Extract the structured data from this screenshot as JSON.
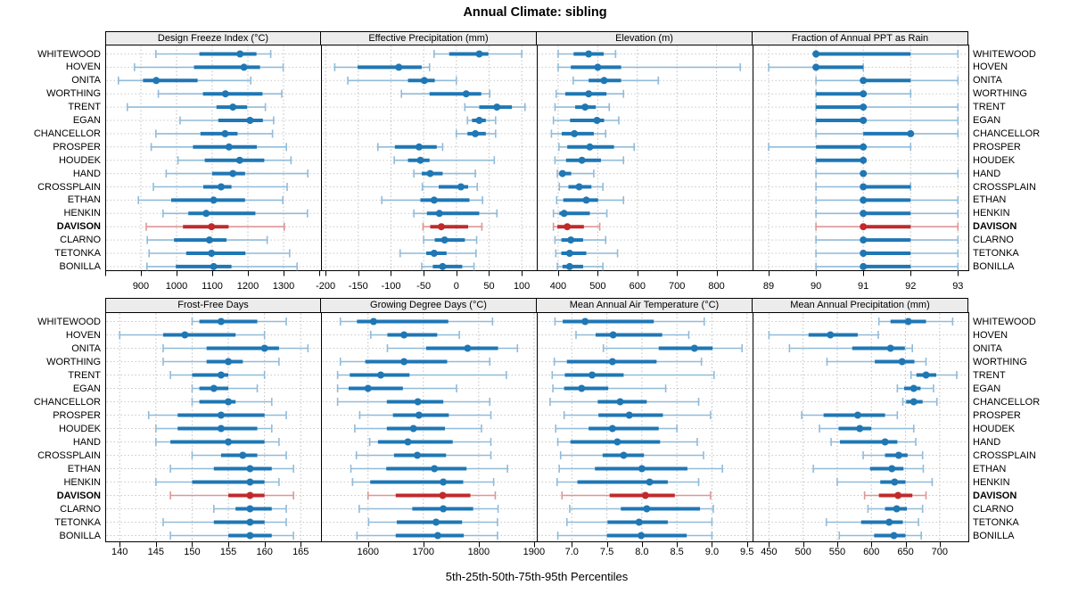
{
  "title": "Annual Climate: sibling",
  "footer": "5th-25th-50th-75th-95th Percentiles",
  "highlight_site": "DAVISON",
  "colors": {
    "series": "#1f77b4",
    "series_light": "#91bbd9",
    "highlight": "#c02a2c",
    "highlight_light": "#de9696",
    "strip_bg": "#ececec",
    "panel_border": "#000000",
    "grid": "#c0c0c0",
    "row_line": "#c9c9c9"
  },
  "sites": [
    "WHITEWOOD",
    "HOVEN",
    "ONITA",
    "WORTHING",
    "TRENT",
    "EGAN",
    "CHANCELLOR",
    "PROSPER",
    "HOUDEK",
    "HAND",
    "CROSSPLAIN",
    "ETHAN",
    "HENKIN",
    "DAVISON",
    "CLARNO",
    "TETONKA",
    "BONILLA"
  ],
  "chart_data": {
    "type": "scatter",
    "subtype": "lattice-percentile-dotplot",
    "title": "Annual Climate: sibling",
    "xlabel": "5th-25th-50th-75th-95th Percentiles",
    "percentiles": [
      5,
      25,
      50,
      75,
      95
    ],
    "legend_position": "none",
    "grid": "dotted",
    "sites": [
      "WHITEWOOD",
      "HOVEN",
      "ONITA",
      "WORTHING",
      "TRENT",
      "EGAN",
      "CHANCELLOR",
      "PROSPER",
      "HOUDEK",
      "HAND",
      "CROSSPLAIN",
      "ETHAN",
      "HENKIN",
      "DAVISON",
      "CLARNO",
      "TETONKA",
      "BONILLA"
    ],
    "highlight_site": "DAVISON",
    "panels": [
      {
        "title": "Design Freeze Index (°C)",
        "tick_values": [
          900,
          1000,
          1100,
          1200,
          1300
        ],
        "tick_labels": [
          "900",
          "1000",
          "1100",
          "1200",
          "1300"
        ],
        "extra_tick_values": [
          800,
          1400
        ],
        "xlim": [
          800,
          1405
        ],
        "values": [
          [
            942,
            1064,
            1178,
            1224,
            1264
          ],
          [
            882,
            1049,
            1189,
            1234,
            1299
          ],
          [
            837,
            906,
            943,
            1059,
            1208
          ],
          [
            949,
            1074,
            1137,
            1241,
            1295
          ],
          [
            862,
            1112,
            1158,
            1198,
            1249
          ],
          [
            1010,
            1117,
            1206,
            1242,
            1272
          ],
          [
            942,
            1067,
            1136,
            1171,
            1269
          ],
          [
            929,
            1046,
            1147,
            1225,
            1308
          ],
          [
            1004,
            1079,
            1177,
            1246,
            1321
          ],
          [
            971,
            1100,
            1158,
            1192,
            1368
          ],
          [
            935,
            1075,
            1125,
            1154,
            1310
          ],
          [
            893,
            985,
            1104,
            1192,
            1298
          ],
          [
            962,
            1033,
            1083,
            1221,
            1367
          ],
          [
            915,
            1018,
            1098,
            1146,
            1302
          ],
          [
            918,
            993,
            1092,
            1140,
            1254
          ],
          [
            923,
            1027,
            1098,
            1193,
            1317
          ],
          [
            917,
            998,
            1104,
            1154,
            1338
          ]
        ]
      },
      {
        "title": "Effective Precipitation (mm)",
        "tick_values": [
          -200,
          -150,
          -100,
          -50,
          0,
          50,
          100
        ],
        "tick_labels": [
          "-200",
          "-150",
          "-100",
          "-50",
          "0",
          "50",
          "100"
        ],
        "extra_tick_values": [],
        "xlim": [
          -207,
          123
        ],
        "values": [
          [
            -34,
            -11,
            35,
            49,
            100
          ],
          [
            -186,
            -151,
            -88,
            -53,
            -41
          ],
          [
            -166,
            -74,
            -49,
            -33,
            0
          ],
          [
            -84,
            -41,
            15,
            38,
            51
          ],
          [
            13,
            35,
            62,
            85,
            105
          ],
          [
            17,
            24,
            35,
            45,
            60
          ],
          [
            0,
            17,
            29,
            45,
            60
          ],
          [
            -120,
            -94,
            -57,
            -30,
            -21
          ],
          [
            -95,
            -74,
            -55,
            -41,
            58
          ],
          [
            -65,
            -53,
            -40,
            -21,
            29
          ],
          [
            -52,
            -27,
            7,
            18,
            32
          ],
          [
            -114,
            -55,
            -34,
            20,
            40
          ],
          [
            -65,
            -45,
            -26,
            35,
            62
          ],
          [
            -51,
            -40,
            -23,
            18,
            39
          ],
          [
            -50,
            -33,
            -18,
            13,
            31
          ],
          [
            -86,
            -46,
            -34,
            -15,
            30
          ],
          [
            -53,
            -36,
            -21,
            9,
            27
          ]
        ]
      },
      {
        "title": "Elevation (m)",
        "tick_values": [
          400,
          500,
          600,
          700,
          800
        ],
        "tick_labels": [
          "400",
          "500",
          "600",
          "700",
          "800"
        ],
        "extra_tick_values": [],
        "xlim": [
          346,
          891
        ],
        "values": [
          [
            400,
            439,
            477,
            515,
            545
          ],
          [
            400,
            432,
            500,
            559,
            860
          ],
          [
            438,
            477,
            516,
            559,
            653
          ],
          [
            395,
            418,
            477,
            522,
            565
          ],
          [
            392,
            443,
            468,
            495,
            529
          ],
          [
            388,
            430,
            498,
            516,
            553
          ],
          [
            383,
            409,
            441,
            490,
            520
          ],
          [
            402,
            423,
            480,
            541,
            592
          ],
          [
            392,
            420,
            460,
            508,
            565
          ],
          [
            398,
            403,
            411,
            433,
            490
          ],
          [
            403,
            426,
            453,
            484,
            513
          ],
          [
            396,
            413,
            471,
            501,
            565
          ],
          [
            388,
            403,
            415,
            480,
            523
          ],
          [
            388,
            398,
            423,
            465,
            505
          ],
          [
            392,
            408,
            432,
            463,
            520
          ],
          [
            394,
            408,
            429,
            471,
            550
          ],
          [
            398,
            411,
            429,
            463,
            513
          ]
        ]
      },
      {
        "title": "Fraction of Annual PPT as Rain",
        "tick_values": [
          89,
          90,
          91,
          92,
          93
        ],
        "tick_labels": [
          "89",
          "90",
          "91",
          "92",
          "93"
        ],
        "extra_tick_values": [],
        "xlim": [
          88.66,
          93.22
        ],
        "values": [
          [
            90,
            90,
            90,
            92,
            93
          ],
          [
            89,
            90,
            90,
            91,
            91
          ],
          [
            90,
            91,
            91,
            92,
            93
          ],
          [
            90,
            90,
            91,
            91,
            92
          ],
          [
            90,
            90,
            91,
            91,
            93
          ],
          [
            90,
            90,
            91,
            91,
            93
          ],
          [
            90,
            91,
            92,
            92,
            93
          ],
          [
            89,
            90,
            91,
            91,
            92
          ],
          [
            90,
            90,
            91,
            91,
            91
          ],
          [
            90,
            91,
            91,
            91,
            93
          ],
          [
            90,
            91,
            91,
            92,
            92
          ],
          [
            90,
            91,
            91,
            92,
            93
          ],
          [
            90,
            91,
            91,
            92,
            93
          ],
          [
            90,
            91,
            91,
            92,
            93
          ],
          [
            90,
            91,
            91,
            92,
            93
          ],
          [
            90,
            91,
            91,
            92,
            93
          ],
          [
            90,
            91,
            91,
            92,
            93
          ]
        ]
      },
      {
        "title": "Frost-Free Days",
        "tick_values": [
          140,
          145,
          150,
          155,
          160,
          165
        ],
        "tick_labels": [
          "140",
          "145",
          "150",
          "155",
          "160",
          "165"
        ],
        "extra_tick_values": [],
        "xlim": [
          138,
          167.8
        ],
        "values": [
          [
            150,
            151,
            154,
            159,
            163
          ],
          [
            140,
            146,
            149,
            156,
            160
          ],
          [
            146,
            152,
            160,
            162,
            166
          ],
          [
            146,
            152,
            155,
            157,
            162
          ],
          [
            147,
            150,
            154,
            155,
            160
          ],
          [
            150,
            151,
            153,
            155,
            159
          ],
          [
            150,
            151,
            155,
            156,
            161
          ],
          [
            144,
            148,
            154,
            160,
            163
          ],
          [
            145,
            148,
            154,
            159,
            161
          ],
          [
            145,
            147,
            155,
            160,
            162
          ],
          [
            150,
            154,
            157,
            159,
            163
          ],
          [
            147,
            153,
            158,
            161,
            164
          ],
          [
            145,
            150,
            158,
            160,
            162
          ],
          [
            147,
            155,
            158,
            160,
            164
          ],
          [
            153,
            156,
            158,
            161,
            163
          ],
          [
            146,
            153,
            158,
            160,
            163
          ],
          [
            147,
            155,
            158,
            161,
            164
          ]
        ]
      },
      {
        "title": "Growing Degree Days (°C)",
        "tick_values": [
          1600,
          1700,
          1800,
          1900
        ],
        "tick_labels": [
          "1600",
          "1700",
          "1800",
          "1900"
        ],
        "extra_tick_values": [],
        "xlim": [
          1515,
          1905
        ],
        "values": [
          [
            1550,
            1580,
            1610,
            1745,
            1825
          ],
          [
            1605,
            1635,
            1665,
            1725,
            1765
          ],
          [
            1635,
            1705,
            1780,
            1835,
            1870
          ],
          [
            1550,
            1595,
            1665,
            1743,
            1820
          ],
          [
            1545,
            1567,
            1623,
            1675,
            1850
          ],
          [
            1545,
            1565,
            1600,
            1663,
            1760
          ],
          [
            1545,
            1634,
            1690,
            1736,
            1820
          ],
          [
            1585,
            1645,
            1692,
            1746,
            1822
          ],
          [
            1576,
            1634,
            1682,
            1739,
            1805
          ],
          [
            1603,
            1618,
            1672,
            1753,
            1822
          ],
          [
            1579,
            1647,
            1689,
            1741,
            1822
          ],
          [
            1569,
            1633,
            1720,
            1778,
            1852
          ],
          [
            1572,
            1604,
            1736,
            1772,
            1827
          ],
          [
            1600,
            1650,
            1735,
            1785,
            1830
          ],
          [
            1584,
            1680,
            1736,
            1790,
            1835
          ],
          [
            1601,
            1652,
            1723,
            1770,
            1834
          ],
          [
            1580,
            1650,
            1726,
            1773,
            1834
          ]
        ]
      },
      {
        "title": "Mean Annual Air Temperature (°C)",
        "tick_values": [
          7.0,
          7.5,
          8.0,
          8.5,
          9.0,
          9.5
        ],
        "tick_labels": [
          "7.0",
          "7.5",
          "8.0",
          "8.5",
          "9.0",
          "9.5"
        ],
        "extra_tick_values": [],
        "xlim": [
          6.5,
          9.58
        ],
        "values": [
          [
            6.76,
            6.87,
            7.19,
            8.17,
            8.89
          ],
          [
            7.06,
            7.34,
            7.59,
            8.29,
            8.67
          ],
          [
            7.45,
            8.24,
            8.75,
            9.01,
            9.43
          ],
          [
            6.75,
            6.93,
            7.58,
            8.21,
            8.85
          ],
          [
            6.72,
            6.9,
            7.29,
            7.74,
            9.03
          ],
          [
            6.73,
            6.89,
            7.14,
            7.52,
            8.34
          ],
          [
            6.69,
            7.37,
            7.69,
            8.07,
            8.81
          ],
          [
            6.89,
            7.38,
            7.82,
            8.3,
            8.98
          ],
          [
            6.77,
            7.24,
            7.58,
            8.24,
            8.5
          ],
          [
            6.8,
            6.98,
            7.65,
            8.26,
            8.79
          ],
          [
            6.84,
            7.44,
            7.74,
            8.03,
            8.88
          ],
          [
            6.82,
            7.33,
            8.0,
            8.65,
            9.15
          ],
          [
            6.79,
            7.08,
            8.11,
            8.37,
            8.81
          ],
          [
            6.86,
            7.54,
            8.05,
            8.47,
            8.98
          ],
          [
            6.97,
            7.7,
            8.07,
            8.83,
            9.02
          ],
          [
            6.93,
            7.51,
            7.96,
            8.37,
            9.0
          ],
          [
            6.8,
            7.5,
            7.99,
            8.64,
            9.0
          ]
        ]
      },
      {
        "title": "Mean Annual Precipitation (mm)",
        "tick_values": [
          450,
          500,
          550,
          600,
          650,
          700
        ],
        "tick_labels": [
          "450",
          "500",
          "550",
          "600",
          "650",
          "700"
        ],
        "extra_tick_values": [],
        "xlim": [
          426,
          742
        ],
        "values": [
          [
            611,
            628,
            654,
            680,
            719
          ],
          [
            450,
            508,
            540,
            580,
            610
          ],
          [
            480,
            572,
            628,
            649,
            660
          ],
          [
            535,
            605,
            645,
            663,
            680
          ],
          [
            658,
            666,
            680,
            695,
            725
          ],
          [
            638,
            648,
            662,
            672,
            691
          ],
          [
            646,
            651,
            662,
            675,
            696
          ],
          [
            498,
            530,
            580,
            620,
            638
          ],
          [
            524,
            552,
            583,
            600,
            662
          ],
          [
            541,
            554,
            620,
            638,
            665
          ],
          [
            588,
            620,
            640,
            653,
            675
          ],
          [
            515,
            598,
            630,
            647,
            676
          ],
          [
            550,
            613,
            634,
            650,
            689
          ],
          [
            590,
            611,
            639,
            660,
            680
          ],
          [
            595,
            620,
            637,
            652,
            675
          ],
          [
            534,
            585,
            626,
            646,
            669
          ],
          [
            553,
            604,
            633,
            650,
            673
          ]
        ]
      }
    ]
  }
}
